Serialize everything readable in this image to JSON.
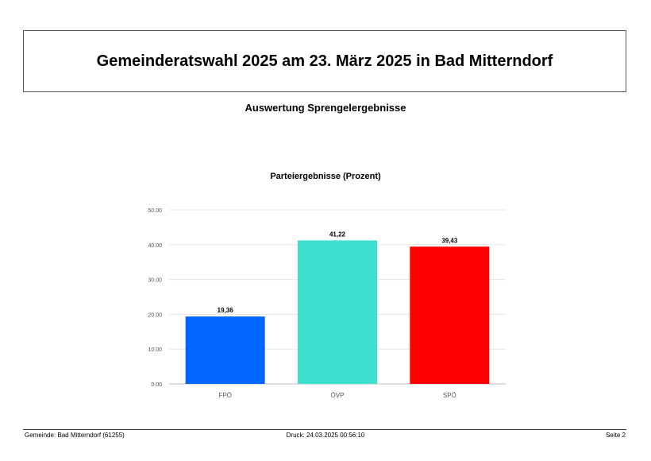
{
  "header": {
    "title": "Gemeinderatswahl 2025 am 23. März 2025 in Bad Mitterndorf",
    "subtitle": "Auswertung Sprengelergebnisse"
  },
  "chart_data": {
    "type": "bar",
    "title": "Parteiergebnisse (Prozent)",
    "xlabel": "",
    "ylabel": "",
    "ylim": [
      0,
      50
    ],
    "yticks": [
      "0.00",
      "10.00",
      "20.00",
      "30.00",
      "40.00",
      "50.00"
    ],
    "grid": true,
    "categories": [
      "FPÖ",
      "ÖVP",
      "SPÖ"
    ],
    "values": [
      19.36,
      41.22,
      39.43
    ],
    "value_labels": [
      "19,36",
      "41,22",
      "39,43"
    ],
    "colors": [
      "#0066ff",
      "#40e0d0",
      "#ff0000"
    ]
  },
  "footer": {
    "left": "Gemeinde: Bad Mitterndorf (61255)",
    "center": "Druck: 24.03.2025 00:56:10",
    "right": "Seite 2"
  }
}
